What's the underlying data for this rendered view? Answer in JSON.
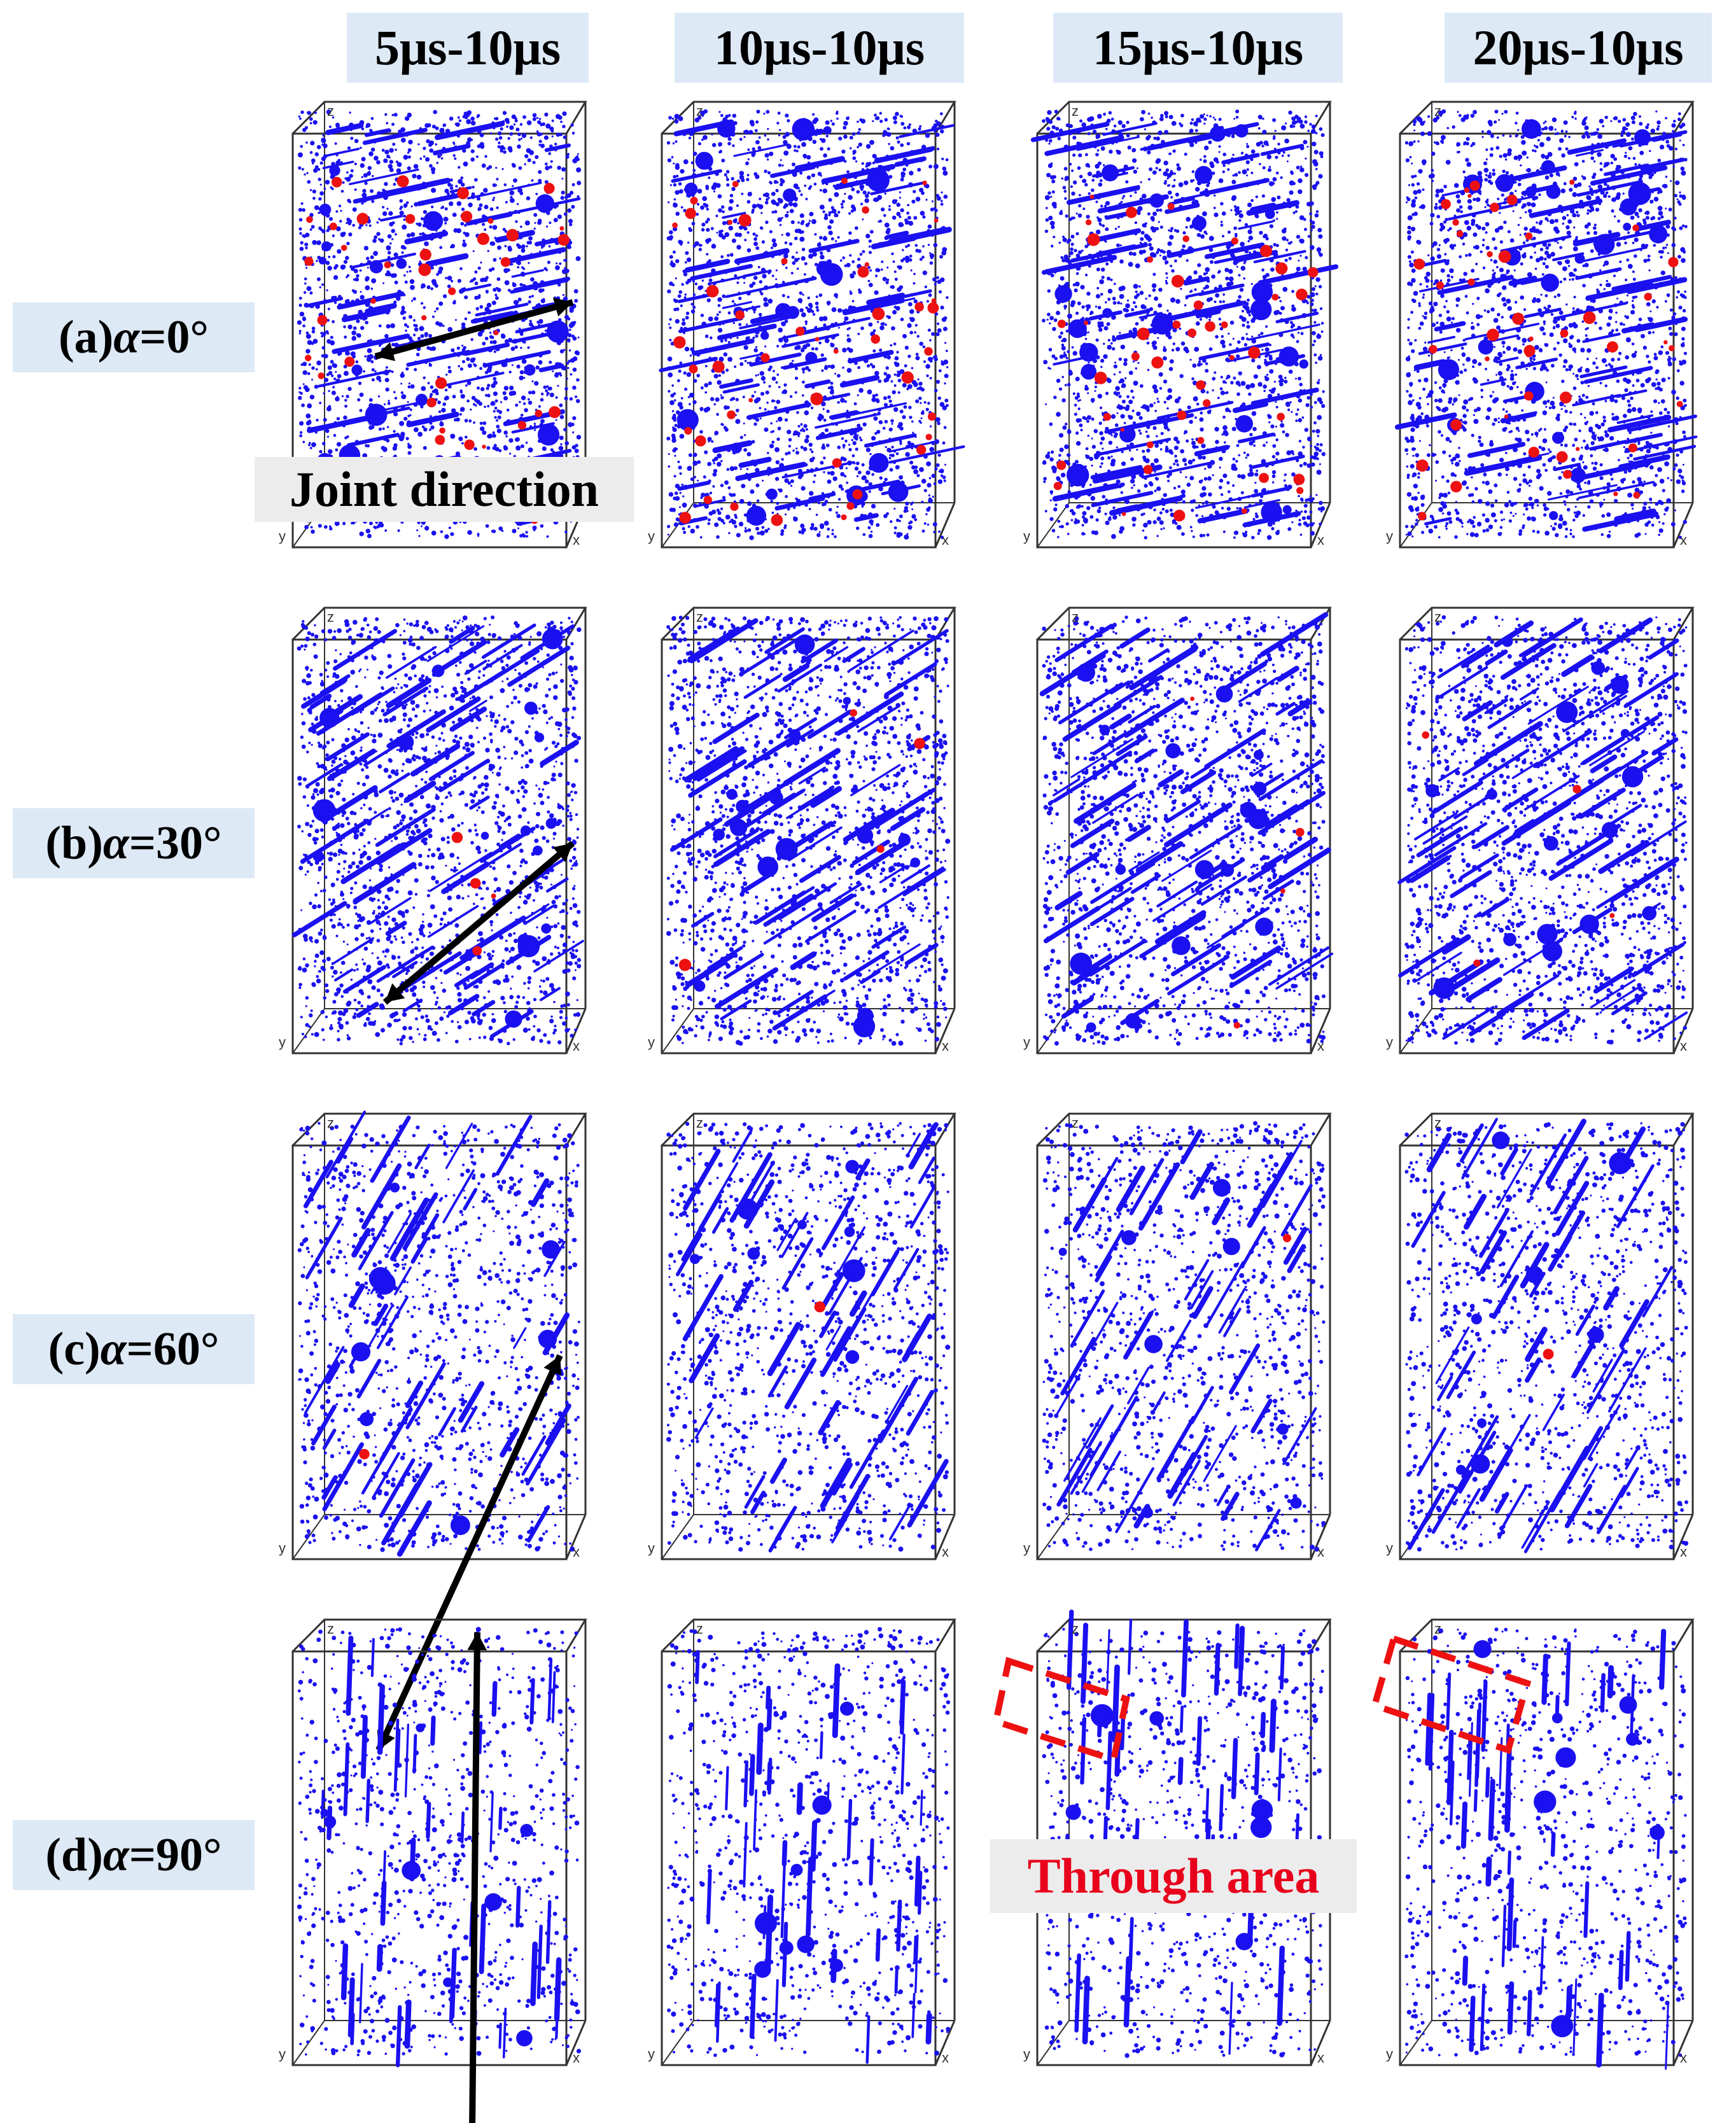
{
  "columns": [
    "5μs-10μs",
    "10μs-10μs",
    "15μs-10μs",
    "20μs-10μs"
  ],
  "rows": [
    {
      "prefix": "(a) ",
      "alpha": "α",
      "value": "=0°"
    },
    {
      "prefix": "(b) ",
      "alpha": "α",
      "value": "=30°"
    },
    {
      "prefix": "(c) ",
      "alpha": "α",
      "value": "=60°"
    },
    {
      "prefix": "(d) ",
      "alpha": "α",
      "value": "=90°"
    }
  ],
  "annotations": {
    "joint_direction": "Joint direction",
    "through_area": "Through area"
  },
  "axis_labels": {
    "x": "x",
    "y": "y",
    "z": "z"
  },
  "colors": {
    "pores": "#1a10f0",
    "cracks": "#ee1111",
    "header_bg": "#dde9f5",
    "through_text": "#e8001c"
  }
}
